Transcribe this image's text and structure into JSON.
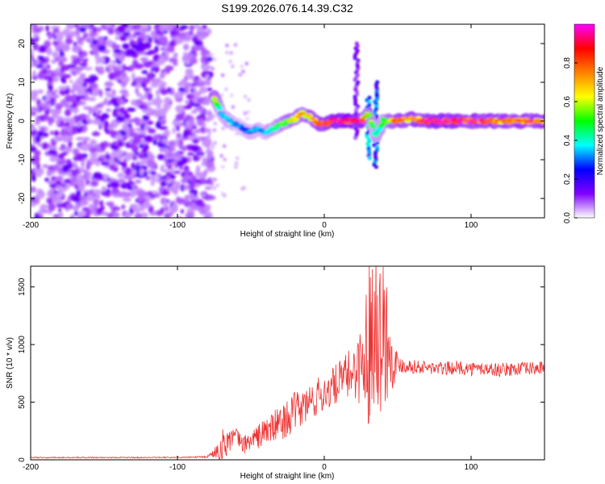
{
  "page_title": "S199.2026.076.14.39.C32",
  "chart_data": [
    {
      "type": "heatmap",
      "title": "S199.2026.076.14.39.C32",
      "xlabel": "Height of straight line (km)",
      "ylabel": "Frequency (Hz)",
      "xlim": [
        -200,
        150
      ],
      "ylim": [
        -25,
        25
      ],
      "x_ticks": [
        "-200",
        "-100",
        "0",
        "100"
      ],
      "x_tick_values": [
        -200,
        -100,
        0,
        100
      ],
      "y_ticks": [
        "20",
        "10",
        "0",
        "-10",
        "-20"
      ],
      "y_tick_values": [
        20,
        10,
        0,
        -10,
        -20
      ],
      "colorbar": {
        "label": "Normalized spectral amplitude",
        "range": [
          0,
          1
        ],
        "ticks": [
          "0.0",
          "0.2",
          "0.4",
          "0.6",
          "0.8"
        ],
        "tick_values": [
          0.0,
          0.2,
          0.4,
          0.6,
          0.8
        ],
        "colors": [
          "#ffffff",
          "#8000ff",
          "#0000ff",
          "#00ffff",
          "#00ff00",
          "#ffff00",
          "#ff8000",
          "#ff0000",
          "#ff00ff"
        ]
      },
      "noise_region_x": [
        -200,
        -77
      ],
      "ridge": [
        {
          "x": -75,
          "freq": 6,
          "amp": 0.6
        },
        {
          "x": -70,
          "freq": 2,
          "amp": 0.3
        },
        {
          "x": -65,
          "freq": 0,
          "amp": 0.35
        },
        {
          "x": -60,
          "freq": -1,
          "amp": 0.3
        },
        {
          "x": -55,
          "freq": -2,
          "amp": 0.25
        },
        {
          "x": -50,
          "freq": -3,
          "amp": 0.3
        },
        {
          "x": -45,
          "freq": -2,
          "amp": 0.3
        },
        {
          "x": -40,
          "freq": -3,
          "amp": 0.3
        },
        {
          "x": -35,
          "freq": -2,
          "amp": 0.4
        },
        {
          "x": -30,
          "freq": -1,
          "amp": 0.45
        },
        {
          "x": -25,
          "freq": 0,
          "amp": 0.55
        },
        {
          "x": -20,
          "freq": 0.5,
          "amp": 0.6
        },
        {
          "x": -15,
          "freq": 2,
          "amp": 0.65
        },
        {
          "x": -10,
          "freq": 1,
          "amp": 0.6
        },
        {
          "x": -5,
          "freq": -0.5,
          "amp": 0.7
        },
        {
          "x": 0,
          "freq": -1,
          "amp": 0.75
        },
        {
          "x": 5,
          "freq": 0,
          "amp": 0.8
        },
        {
          "x": 15,
          "freq": 0,
          "amp": 0.9
        },
        {
          "x": 25,
          "freq": 0,
          "amp": 0.85
        },
        {
          "x": 30,
          "freq": 2,
          "amp": 0.5
        },
        {
          "x": 35,
          "freq": -4,
          "amp": 0.4
        },
        {
          "x": 40,
          "freq": 0,
          "amp": 0.45
        },
        {
          "x": 50,
          "freq": 0,
          "amp": 0.7
        },
        {
          "x": 60,
          "freq": 0.5,
          "amp": 0.7
        },
        {
          "x": 70,
          "freq": 0,
          "amp": 0.8
        },
        {
          "x": 80,
          "freq": 0,
          "amp": 0.85
        },
        {
          "x": 90,
          "freq": 0,
          "amp": 0.85
        },
        {
          "x": 100,
          "freq": 0,
          "amp": 0.8
        },
        {
          "x": 110,
          "freq": 0,
          "amp": 0.75
        },
        {
          "x": 120,
          "freq": 0,
          "amp": 0.7
        },
        {
          "x": 130,
          "freq": 0,
          "amp": 0.7
        },
        {
          "x": 140,
          "freq": 0,
          "amp": 0.75
        },
        {
          "x": 150,
          "freq": 0,
          "amp": 0.7
        }
      ],
      "vertical_streaks": [
        {
          "x": 22,
          "freq_range": [
            -5,
            20
          ],
          "amp": 0.15
        },
        {
          "x": 30,
          "freq_range": [
            -10,
            6
          ],
          "amp": 0.35
        },
        {
          "x": 35,
          "freq_range": [
            -12,
            10
          ],
          "amp": 0.3
        }
      ]
    },
    {
      "type": "line",
      "xlabel": "Height of straight line (km)",
      "ylabel": "SNR (10 * v/v)",
      "xlim": [
        -200,
        150
      ],
      "ylim": [
        0,
        1680
      ],
      "x_ticks": [
        "-200",
        "-100",
        "0",
        "100"
      ],
      "x_tick_values": [
        -200,
        -100,
        0,
        100
      ],
      "y_ticks": [
        "0",
        "500",
        "1000",
        "1500"
      ],
      "y_tick_values": [
        0,
        500,
        1000,
        1500
      ],
      "series": [
        {
          "name": "SNR",
          "color": "#ee3333",
          "x": [
            -200,
            -150,
            -100,
            -80,
            -75,
            -70,
            -65,
            -60,
            -55,
            -50,
            -45,
            -40,
            -35,
            -30,
            -25,
            -20,
            -15,
            -10,
            -5,
            0,
            5,
            10,
            15,
            20,
            25,
            28,
            30,
            33,
            35,
            38,
            40,
            43,
            45,
            50,
            60,
            70,
            80,
            90,
            100,
            110,
            120,
            130,
            140,
            150
          ],
          "y": [
            20,
            20,
            20,
            25,
            60,
            110,
            180,
            200,
            130,
            170,
            200,
            250,
            280,
            320,
            360,
            420,
            450,
            500,
            540,
            580,
            620,
            680,
            720,
            780,
            820,
            900,
            1000,
            1200,
            1300,
            1050,
            1150,
            1050,
            900,
            830,
            810,
            800,
            790,
            800,
            790,
            790,
            780,
            790,
            790,
            800
          ],
          "noise_amplitude": [
            5,
            5,
            5,
            8,
            40,
            150,
            120,
            80,
            80,
            90,
            110,
            130,
            140,
            150,
            160,
            170,
            170,
            170,
            170,
            170,
            170,
            180,
            200,
            250,
            350,
            550,
            700,
            800,
            700,
            700,
            650,
            600,
            350,
            80,
            60,
            60,
            60,
            60,
            60,
            60,
            60,
            60,
            60,
            60
          ]
        }
      ]
    }
  ]
}
